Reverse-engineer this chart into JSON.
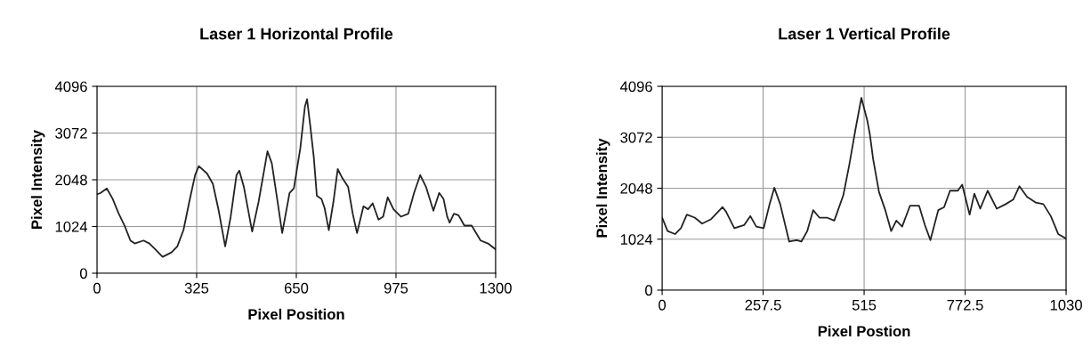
{
  "chart_data": [
    {
      "type": "line",
      "title": "Laser 1 Horizontal Profile",
      "xlabel": "Pixel Position",
      "ylabel": "Pixel Intensity",
      "xlim": [
        0,
        1300
      ],
      "xticks": [
        0,
        325,
        650,
        975,
        1300
      ],
      "ylim": [
        0,
        4096
      ],
      "yticks": [
        0,
        1024,
        2048,
        3072,
        4096
      ],
      "grid": true,
      "legend": false,
      "x": [
        0,
        12,
        32,
        51,
        71,
        90,
        109,
        123,
        152,
        171,
        190,
        214,
        243,
        262,
        282,
        301,
        320,
        332,
        359,
        378,
        397,
        418,
        436,
        455,
        464,
        479,
        506,
        527,
        556,
        570,
        589,
        604,
        628,
        642,
        663,
        678,
        685,
        695,
        707,
        717,
        732,
        742,
        756,
        771,
        785,
        800,
        819,
        834,
        848,
        869,
        884,
        899,
        918,
        933,
        948,
        967,
        991,
        1015,
        1034,
        1054,
        1073,
        1097,
        1116,
        1130,
        1142,
        1150,
        1164,
        1179,
        1198,
        1222,
        1251,
        1275,
        1300
      ],
      "series": [
        {
          "color": "#222222",
          "values": [
            1728,
            1760,
            1858,
            1630,
            1304,
            1043,
            717,
            652,
            717,
            652,
            522,
            359,
            456,
            587,
            945,
            1565,
            2152,
            2347,
            2184,
            1956,
            1369,
            587,
            1239,
            2152,
            2249,
            1891,
            913,
            1565,
            2673,
            2412,
            1565,
            880,
            1760,
            1858,
            2738,
            3651,
            3814,
            3260,
            2543,
            1695,
            1630,
            1434,
            945,
            1565,
            2282,
            2086,
            1891,
            1304,
            880,
            1467,
            1402,
            1532,
            1174,
            1239,
            1663,
            1402,
            1239,
            1304,
            1760,
            2152,
            1891,
            1369,
            1760,
            1630,
            1240,
            1108,
            1304,
            1271,
            1043,
            1043,
            717,
            652,
            522
          ]
        }
      ]
    },
    {
      "type": "line",
      "title": "Laser 1 Vertical Profile",
      "xlabel": "Pixel Postion",
      "ylabel": "Pixel Intensity",
      "xlim": [
        0,
        1030
      ],
      "xticks": [
        0,
        257.5,
        515,
        772.5,
        1030
      ],
      "ylim": [
        0,
        4096
      ],
      "yticks": [
        0,
        1024,
        2048,
        3072,
        4096
      ],
      "grid": true,
      "legend": false,
      "x": [
        0,
        14,
        33,
        48,
        63,
        83,
        102,
        125,
        154,
        163,
        184,
        209,
        225,
        240,
        259,
        274,
        286,
        301,
        324,
        343,
        355,
        370,
        385,
        401,
        420,
        439,
        462,
        477,
        493,
        508,
        523,
        530,
        538,
        553,
        569,
        584,
        597,
        612,
        632,
        655,
        670,
        684,
        704,
        719,
        734,
        754,
        765,
        784,
        796,
        811,
        830,
        853,
        876,
        895,
        911,
        930,
        953,
        972,
        991,
        1010,
        1030
      ],
      "series": [
        {
          "color": "#222222",
          "values": [
            1457,
            1186,
            1126,
            1246,
            1517,
            1457,
            1336,
            1427,
            1668,
            1577,
            1246,
            1306,
            1487,
            1276,
            1246,
            1728,
            2059,
            1728,
            975,
            1005,
            975,
            1186,
            1607,
            1457,
            1457,
            1397,
            1908,
            2510,
            3233,
            3865,
            3413,
            3112,
            2631,
            1969,
            1607,
            1186,
            1397,
            1276,
            1698,
            1698,
            1306,
            1005,
            1607,
            1668,
            1999,
            1999,
            2119,
            1517,
            1938,
            1637,
            1999,
            1637,
            1728,
            1818,
            2089,
            1878,
            1758,
            1728,
            1487,
            1126,
            1035
          ]
        }
      ]
    }
  ]
}
